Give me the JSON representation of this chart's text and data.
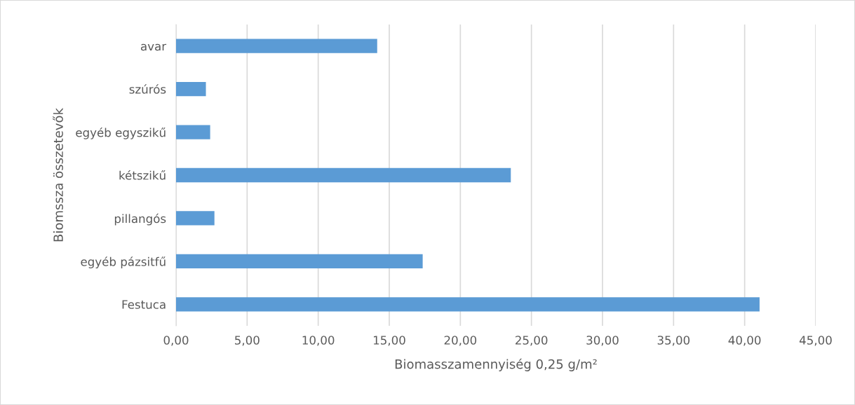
{
  "chart_data": {
    "type": "bar",
    "orientation": "horizontal",
    "categories": [
      "avar",
      "szúrós",
      "egyéb egyszikű",
      "kétszikű",
      "pillangós",
      "egyéb pázsitfű",
      "Festuca"
    ],
    "values": [
      14.15,
      2.1,
      2.4,
      23.55,
      2.7,
      17.35,
      41.05
    ],
    "color": "#5b9bd5",
    "xlabel": "Biomasszamennyiség 0,25 g/m²",
    "ylabel": "Biomssza összetevők",
    "xlim": [
      0,
      45
    ],
    "xticks": [
      {
        "value": 0,
        "label": "0,00"
      },
      {
        "value": 5,
        "label": "5,00"
      },
      {
        "value": 10,
        "label": "10,00"
      },
      {
        "value": 15,
        "label": "15,00"
      },
      {
        "value": 20,
        "label": "20,00"
      },
      {
        "value": 25,
        "label": "25,00"
      },
      {
        "value": 30,
        "label": "30,00"
      },
      {
        "value": 35,
        "label": "35,00"
      },
      {
        "value": 40,
        "label": "40,00"
      },
      {
        "value": 45,
        "label": "45,00"
      }
    ],
    "grid": "x"
  }
}
